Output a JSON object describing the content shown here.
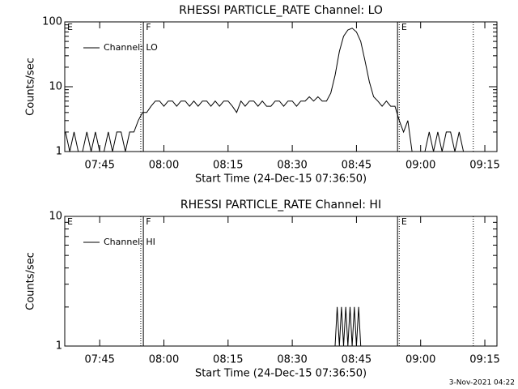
{
  "chart_data": [
    {
      "type": "line",
      "title": "RHESSI PARTICLE_RATE Channel: LO",
      "xlabel": "Start Time (24-Dec-15 07:36:50)",
      "ylabel": "Counts/sec",
      "log_y": true,
      "legend": "upper left",
      "xlim": [
        456.833,
        557.833
      ],
      "xticks": [
        {
          "value": 465,
          "label": "07:45"
        },
        {
          "value": 480,
          "label": "08:00"
        },
        {
          "value": 495,
          "label": "08:15"
        },
        {
          "value": 510,
          "label": "08:30"
        },
        {
          "value": 525,
          "label": "08:45"
        },
        {
          "value": 540,
          "label": "09:00"
        },
        {
          "value": 555,
          "label": "09:15"
        }
      ],
      "ylim": [
        1,
        100
      ],
      "yticks": [
        1,
        10,
        100
      ],
      "yminor": [
        2,
        3,
        4,
        5,
        6,
        7,
        8,
        9,
        20,
        30,
        40,
        50,
        60,
        70,
        80,
        90
      ],
      "vlines": [
        {
          "x": 474.6,
          "style": "dotted"
        },
        {
          "x": 475.2,
          "style": "solid"
        },
        {
          "x": 534.6,
          "style": "solid"
        },
        {
          "x": 535.0,
          "style": "dotted"
        },
        {
          "x": 552.3,
          "style": "dotted"
        }
      ],
      "annotations": [
        {
          "text": "E",
          "x": 457.2
        },
        {
          "text": "F",
          "x": 475.6
        },
        {
          "text": "E",
          "x": 535.3
        }
      ],
      "x": [
        457,
        458,
        459,
        460,
        461,
        462,
        463,
        464,
        465,
        466,
        467,
        468,
        469,
        470,
        471,
        472,
        473,
        474,
        475,
        476,
        477,
        478,
        479,
        480,
        481,
        482,
        483,
        484,
        485,
        486,
        487,
        488,
        489,
        490,
        491,
        492,
        493,
        494,
        495,
        496,
        497,
        498,
        499,
        500,
        501,
        502,
        503,
        504,
        505,
        506,
        507,
        508,
        509,
        510,
        511,
        512,
        513,
        514,
        515,
        516,
        517,
        518,
        519,
        520,
        521,
        522,
        523,
        524,
        525,
        526,
        527,
        528,
        529,
        530,
        531,
        532,
        533,
        534,
        535,
        536,
        537,
        538,
        539,
        540,
        541,
        542,
        543,
        544,
        545,
        546,
        547,
        548,
        549,
        550,
        551,
        552,
        553,
        554,
        555,
        556,
        557
      ],
      "series": [
        {
          "name": "Channel: LO",
          "color": "#000000",
          "values": [
            2,
            1,
            2,
            1,
            1,
            2,
            1,
            2,
            1,
            1,
            2,
            1,
            2,
            2,
            1,
            2,
            2,
            3,
            4,
            4,
            5,
            6,
            6,
            5,
            6,
            6,
            5,
            6,
            6,
            5,
            6,
            5,
            6,
            6,
            5,
            6,
            5,
            6,
            6,
            5,
            4,
            6,
            5,
            6,
            6,
            5,
            6,
            5,
            5,
            6,
            6,
            5,
            6,
            6,
            5,
            6,
            6,
            7,
            6,
            7,
            6,
            6,
            8,
            15,
            35,
            60,
            75,
            80,
            70,
            50,
            25,
            12,
            7,
            6,
            5,
            6,
            5,
            5,
            3,
            2,
            3,
            1,
            1,
            1,
            1,
            2,
            1,
            2,
            1,
            2,
            2,
            1,
            2,
            1,
            1,
            1,
            1,
            1,
            1,
            1,
            1
          ]
        }
      ]
    },
    {
      "type": "line",
      "title": "RHESSI PARTICLE_RATE Channel: HI",
      "xlabel": "Start Time (24-Dec-15 07:36:50)",
      "ylabel": "Counts/sec",
      "log_y": true,
      "legend": "upper left",
      "xlim": [
        456.833,
        557.833
      ],
      "xticks": [
        {
          "value": 465,
          "label": "07:45"
        },
        {
          "value": 480,
          "label": "08:00"
        },
        {
          "value": 495,
          "label": "08:15"
        },
        {
          "value": 510,
          "label": "08:30"
        },
        {
          "value": 525,
          "label": "08:45"
        },
        {
          "value": 540,
          "label": "09:00"
        },
        {
          "value": 555,
          "label": "09:15"
        }
      ],
      "ylim": [
        1,
        10
      ],
      "yticks": [
        1,
        10
      ],
      "yminor": [
        2,
        3,
        4,
        5,
        6,
        7,
        8,
        9
      ],
      "vlines": [
        {
          "x": 474.6,
          "style": "dotted"
        },
        {
          "x": 475.2,
          "style": "solid"
        },
        {
          "x": 534.6,
          "style": "solid"
        },
        {
          "x": 535.0,
          "style": "dotted"
        },
        {
          "x": 552.3,
          "style": "dotted"
        }
      ],
      "annotations": [
        {
          "text": "E",
          "x": 457.2
        },
        {
          "text": "F",
          "x": 475.6
        },
        {
          "text": "E",
          "x": 535.3
        }
      ],
      "x": [
        520,
        520.5,
        521,
        521.5,
        522,
        522.5,
        523,
        523.5,
        524,
        524.5,
        525,
        525.5,
        526
      ],
      "series": [
        {
          "name": "Channel: HI",
          "color": "#000000",
          "values": [
            1,
            2,
            1,
            2,
            1,
            2,
            1,
            2,
            1,
            2,
            1,
            2,
            1
          ]
        }
      ]
    }
  ],
  "footer": "3-Nov-2021 04:22"
}
